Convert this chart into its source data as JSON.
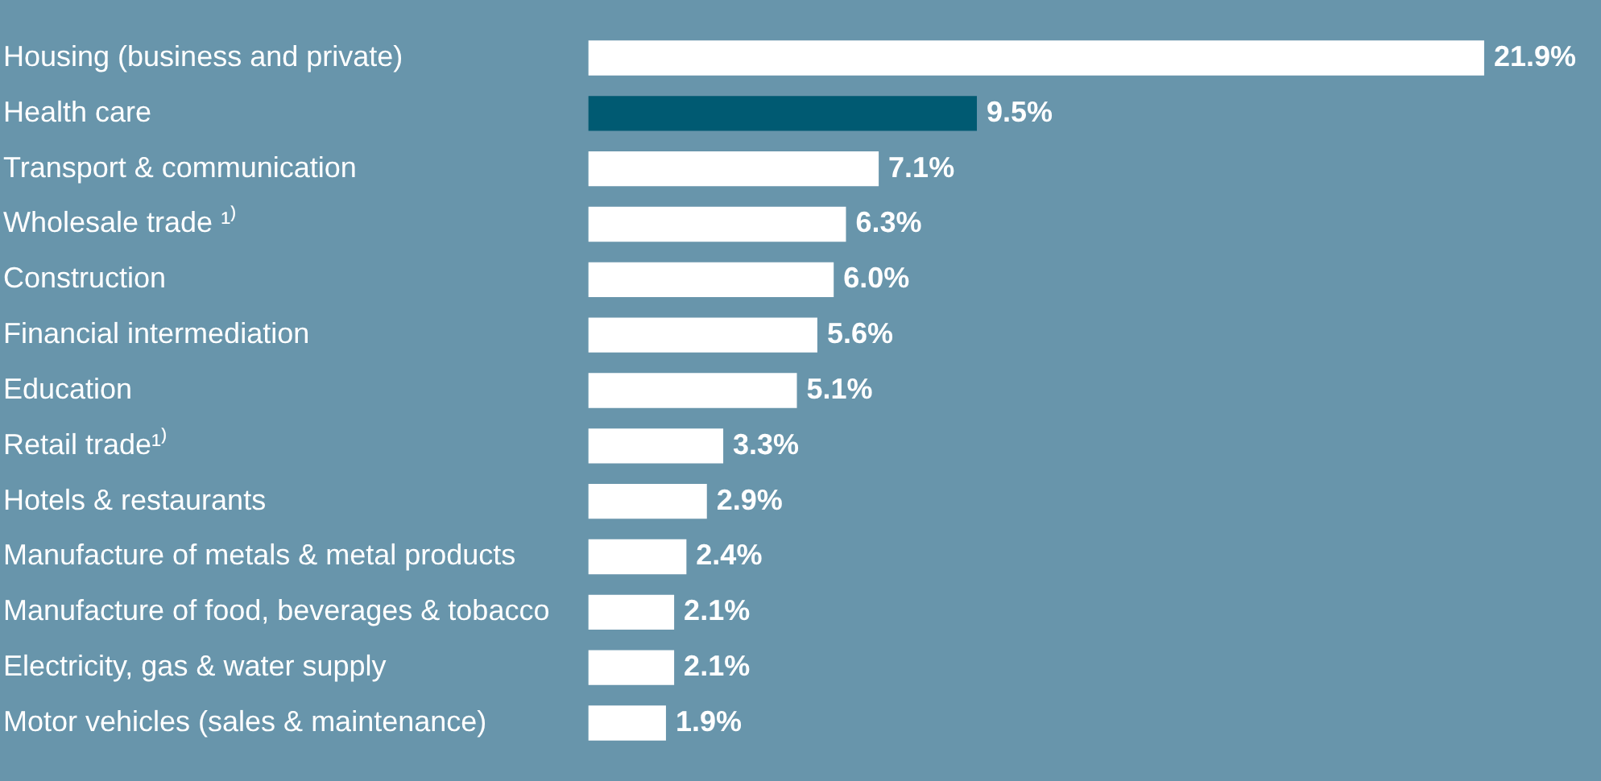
{
  "chart_data": {
    "type": "bar",
    "orientation": "horizontal",
    "categories": [
      "Housing (business and private)",
      "Health care",
      "Transport & communication",
      "Wholesale trade ¹⁾",
      "Construction",
      "Financial intermediation",
      "Education",
      "Retail trade¹⁾",
      "Hotels & restaurants",
      "Manufacture of metals & metal products",
      "Manufacture of food, beverages & tobacco",
      "Electricity, gas & water supply",
      "Motor vehicles (sales & maintenance)"
    ],
    "values": [
      21.9,
      9.5,
      7.1,
      6.3,
      6.0,
      5.6,
      5.1,
      3.3,
      2.9,
      2.4,
      2.1,
      2.1,
      1.9
    ],
    "colors": [
      "#ffffff",
      "#005a72",
      "#ffffff",
      "#ffffff",
      "#ffffff",
      "#ffffff",
      "#ffffff",
      "#ffffff",
      "#ffffff",
      "#ffffff",
      "#ffffff",
      "#ffffff",
      "#ffffff"
    ],
    "value_labels": [
      "21.9%",
      "9.5%",
      "7.1%",
      "6.3%",
      "6.0%",
      "5.6%",
      "5.1%",
      "3.3%",
      "2.9%",
      "2.4%",
      "2.1%",
      "2.1%",
      "1.9%"
    ],
    "xlim": [
      0,
      22
    ],
    "tick_labels": "y"
  }
}
